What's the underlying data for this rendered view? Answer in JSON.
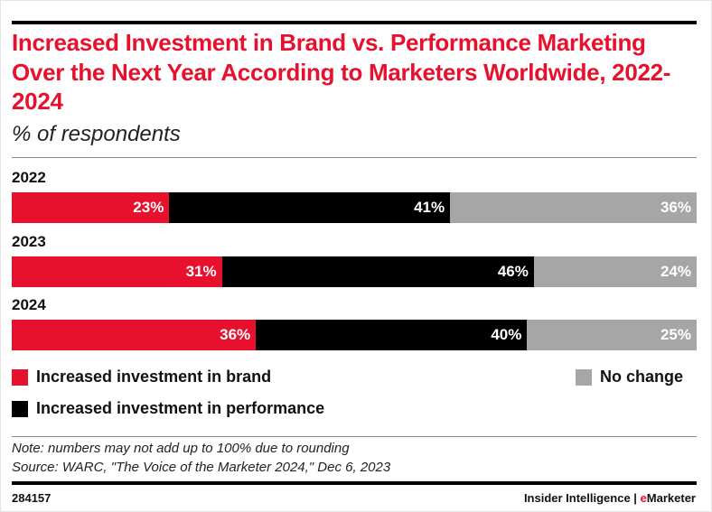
{
  "chart_data": {
    "type": "bar",
    "orientation": "horizontal-stacked-100",
    "title": "Increased Investment in Brand vs. Performance Marketing Over the Next Year According to Marketers Worldwide, 2022-2024",
    "subtitle": "% of respondents",
    "categories": [
      "2022",
      "2023",
      "2024"
    ],
    "series": [
      {
        "name": "Increased investment in brand",
        "color": "#e8112d",
        "values": [
          23,
          31,
          36
        ]
      },
      {
        "name": "Increased investment in performance",
        "color": "#000000",
        "values": [
          41,
          46,
          40
        ]
      },
      {
        "name": "No change",
        "color": "#a6a6a6",
        "values": [
          36,
          24,
          25
        ]
      }
    ],
    "value_suffix": "%",
    "legend_position": "bottom"
  },
  "note": "Note: numbers may not add up to 100% due to rounding",
  "source": "Source: WARC, \"The Voice of the Marketer 2024,\" Dec 6, 2023",
  "chart_id": "284157",
  "brand": {
    "part1": "Insider Intelligence | ",
    "part2_accent": "e",
    "part2_rest": "Marketer"
  }
}
